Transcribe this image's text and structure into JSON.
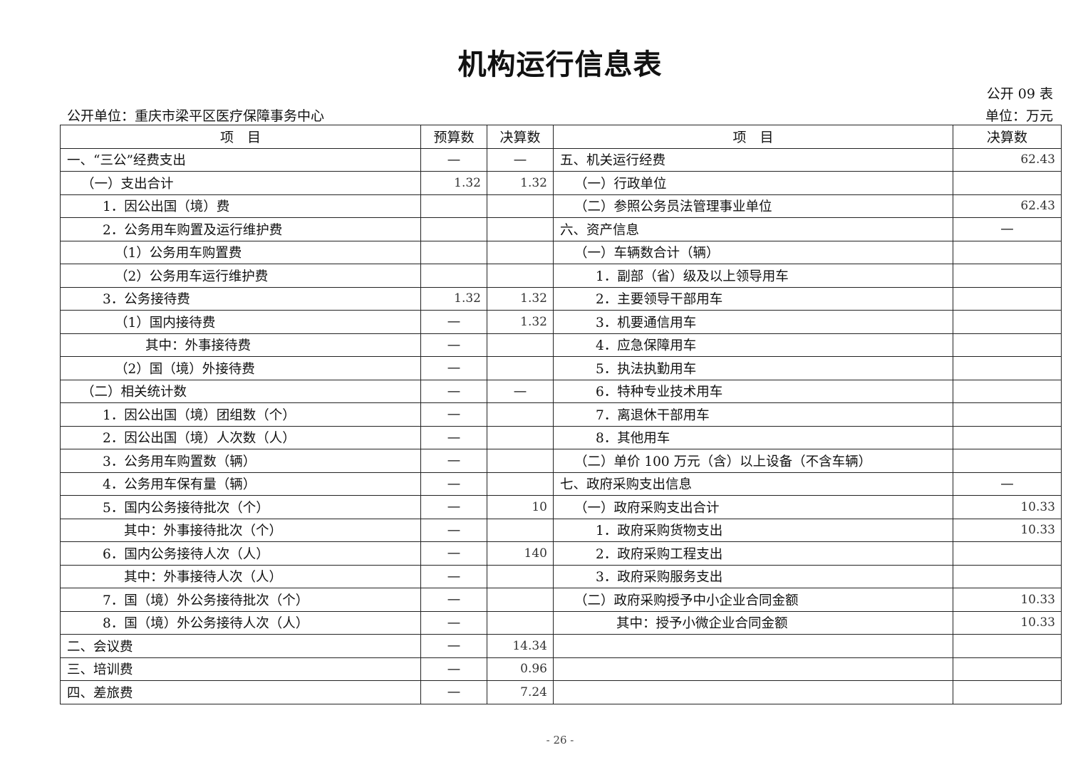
{
  "title": "机构运行信息表",
  "form_no": "公开 09 表",
  "org": "公开单位：重庆市梁平区医疗保障事务中心",
  "unit": "单位：万元",
  "headers": [
    "项　目",
    "预算数",
    "决算数",
    "项　目",
    "决算数"
  ],
  "rows": [
    [
      "一、“三公”经费支出",
      "—",
      "—",
      "五、机关运行经费",
      "62.43"
    ],
    [
      "（一）支出合计",
      "1.32",
      "1.32",
      "（一）行政单位",
      ""
    ],
    [
      "1．因公出国（境）费",
      "",
      "",
      "（二）参照公务员法管理事业单位",
      "62.43"
    ],
    [
      "2．公务用车购置及运行维护费",
      "",
      "",
      "六、资产信息",
      "—"
    ],
    [
      "（1）公务用车购置费",
      "",
      "",
      "（一）车辆数合计（辆）",
      ""
    ],
    [
      "（2）公务用车运行维护费",
      "",
      "",
      "1．副部（省）级及以上领导用车",
      ""
    ],
    [
      "3．公务接待费",
      "1.32",
      "1.32",
      "2．主要领导干部用车",
      ""
    ],
    [
      "（1）国内接待费",
      "—",
      "1.32",
      "3．机要通信用车",
      ""
    ],
    [
      "其中：外事接待费",
      "—",
      "",
      "4．应急保障用车",
      ""
    ],
    [
      "（2）国（境）外接待费",
      "—",
      "",
      "5．执法执勤用车",
      ""
    ],
    [
      "（二）相关统计数",
      "—",
      "—",
      "6．特种专业技术用车",
      ""
    ],
    [
      "1．因公出国（境）团组数（个）",
      "—",
      "",
      "7．离退休干部用车",
      ""
    ],
    [
      "2．因公出国（境）人次数（人）",
      "—",
      "",
      "8．其他用车",
      ""
    ],
    [
      "3．公务用车购置数（辆）",
      "—",
      "",
      "（二）单价 100 万元（含）以上设备（不含车辆）",
      ""
    ],
    [
      "4．公务用车保有量（辆）",
      "—",
      "",
      "七、政府采购支出信息",
      "—"
    ],
    [
      "5．国内公务接待批次（个）",
      "—",
      "10",
      "（一）政府采购支出合计",
      "10.33"
    ],
    [
      "其中：外事接待批次（个）",
      "—",
      "",
      "1．政府采购货物支出",
      "10.33"
    ],
    [
      "6．国内公务接待人次（人）",
      "—",
      "140",
      "2．政府采购工程支出",
      ""
    ],
    [
      "其中：外事接待人次（人）",
      "—",
      "",
      "3．政府采购服务支出",
      ""
    ],
    [
      "7．国（境）外公务接待批次（个）",
      "—",
      "",
      "（二）政府采购授予中小企业合同金额",
      "10.33"
    ],
    [
      "8．国（境）外公务接待人次（人）",
      "—",
      "",
      "其中：授予小微企业合同金额",
      "10.33"
    ],
    [
      "二、会议费",
      "—",
      "14.34",
      "",
      ""
    ],
    [
      "三、培训费",
      "—",
      "0.96",
      "",
      ""
    ],
    [
      "四、差旅费",
      "—",
      "7.24",
      "",
      ""
    ]
  ],
  "page_number": "- 26 -"
}
